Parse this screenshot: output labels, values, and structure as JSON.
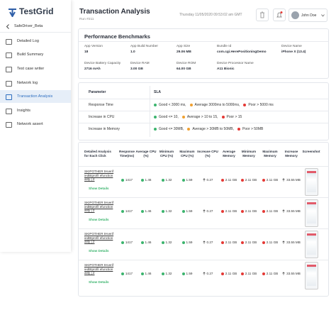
{
  "logo": "TestGrid",
  "sidebar": {
    "project": "SafeDriver_Beta",
    "items": [
      {
        "label": "Detailed Log"
      },
      {
        "label": "Build Summary"
      },
      {
        "label": "Test case writer"
      },
      {
        "label": "Network log"
      },
      {
        "label": "Transaction Analysis",
        "active": true
      },
      {
        "label": "Insights"
      },
      {
        "label": "Network assert"
      }
    ]
  },
  "header": {
    "title": "Transaction Analysis",
    "run": "Run #211",
    "datetime": "Thursday 11/05/2020 09:53:02 am GMT",
    "user": "John Doe"
  },
  "benchmarks": {
    "title": "Performance Benchmarks",
    "fields": [
      {
        "label": "App Version",
        "value": "18"
      },
      {
        "label": "App Build Number",
        "value": "1.0"
      },
      {
        "label": "App Size",
        "value": "29.06 MB"
      },
      {
        "label": "Bundle Id",
        "value": "com.cgi.HerePositioningDemo"
      },
      {
        "label": "Device Name",
        "value": "iPhone X (13.4)"
      },
      {
        "label": "Device Battery Capacity",
        "value": "2716 mAh"
      },
      {
        "label": "Device RAM",
        "value": "3.00 GB"
      },
      {
        "label": "Device ROM",
        "value": "64.00 GB"
      },
      {
        "label": "Device Processor Name",
        "value": "A11 Bionic"
      }
    ]
  },
  "sla": {
    "headers": [
      "Parameter",
      "SLA"
    ],
    "rows": [
      {
        "parameter": "Response Time",
        "levels": [
          {
            "status": "good",
            "text": "Good < 3000 ms,"
          },
          {
            "status": "average",
            "text": "Average 3000ms to 5000ms,"
          },
          {
            "status": "poor",
            "text": "Poor > 5000 ms"
          }
        ]
      },
      {
        "parameter": "Increase in CPU",
        "levels": [
          {
            "status": "good",
            "text": "Good <= 10,"
          },
          {
            "status": "average",
            "text": "Average > 10 to 15,"
          },
          {
            "status": "poor",
            "text": "Poor > 15"
          }
        ]
      },
      {
        "parameter": "Increase in Memory",
        "levels": [
          {
            "status": "good",
            "text": "Good <= 30MB,"
          },
          {
            "status": "average",
            "text": "Average > 30MB to 50MB,"
          },
          {
            "status": "poor",
            "text": "Poor > 50MB"
          }
        ]
      }
    ]
  },
  "details": {
    "headers": [
      "Detailed Analysis for Each Click",
      "Response Time(ms)",
      "Average CPU (%)",
      "Minimum CPU (%)",
      "Maximum CPU (%)",
      "Increase CPU (%)",
      "Average Memory",
      "Minimum Memory",
      "Maximum Memory",
      "Increase Memory",
      "Screenshot"
    ],
    "rows": [
      {
        "name": "SKIPOTHER tHverifiedBtprofil efunctionality | 2",
        "link": "Show Details",
        "cells": [
          {
            "value": "1417",
            "status": "good"
          },
          {
            "value": "1.46",
            "status": "good"
          },
          {
            "value": "1.32",
            "status": "good"
          },
          {
            "value": "1.59",
            "status": "good"
          },
          {
            "value": "0.27",
            "trend": "up"
          },
          {
            "value": "2.11 GB",
            "status": "poor"
          },
          {
            "value": "2.11 GB",
            "status": "poor"
          },
          {
            "value": "2.11 GB",
            "status": "poor"
          },
          {
            "value": "33.55 MB",
            "trend": "up"
          }
        ]
      },
      {
        "name": "SKIPOTHER tHverifiedBtprofil efunctionality | 2",
        "link": "Show Details",
        "cells": [
          {
            "value": "1417",
            "status": "good"
          },
          {
            "value": "1.46",
            "status": "good"
          },
          {
            "value": "1.32",
            "status": "good"
          },
          {
            "value": "1.59",
            "status": "good"
          },
          {
            "value": "0.27",
            "trend": "up"
          },
          {
            "value": "2.11 GB",
            "status": "poor"
          },
          {
            "value": "2.11 GB",
            "status": "poor"
          },
          {
            "value": "2.11 GB",
            "status": "poor"
          },
          {
            "value": "33.55 MB",
            "trend": "up"
          }
        ]
      },
      {
        "name": "SKIPOTHER tHverifiedBtprofil efunctionality | 2",
        "link": "Show Details",
        "cells": [
          {
            "value": "1417",
            "status": "good"
          },
          {
            "value": "1.46",
            "status": "good"
          },
          {
            "value": "1.32",
            "status": "good"
          },
          {
            "value": "1.59",
            "status": "good"
          },
          {
            "value": "0.27",
            "trend": "up"
          },
          {
            "value": "2.11 GB",
            "status": "poor"
          },
          {
            "value": "2.11 GB",
            "status": "poor"
          },
          {
            "value": "2.11 GB",
            "status": "poor"
          },
          {
            "value": "33.55 MB",
            "trend": "up"
          }
        ]
      },
      {
        "name": "SKIPOTHER tHverifiedBtprofil efunctionality | 2",
        "link": "Show Details",
        "cells": [
          {
            "value": "1417",
            "status": "good"
          },
          {
            "value": "1.46",
            "status": "good"
          },
          {
            "value": "1.32",
            "status": "good"
          },
          {
            "value": "1.59",
            "status": "good"
          },
          {
            "value": "0.27",
            "trend": "up"
          },
          {
            "value": "2.11 GB",
            "status": "poor"
          },
          {
            "value": "2.11 GB",
            "status": "poor"
          },
          {
            "value": "2.11 GB",
            "status": "poor"
          },
          {
            "value": "33.55 MB",
            "trend": "up"
          }
        ]
      }
    ]
  }
}
